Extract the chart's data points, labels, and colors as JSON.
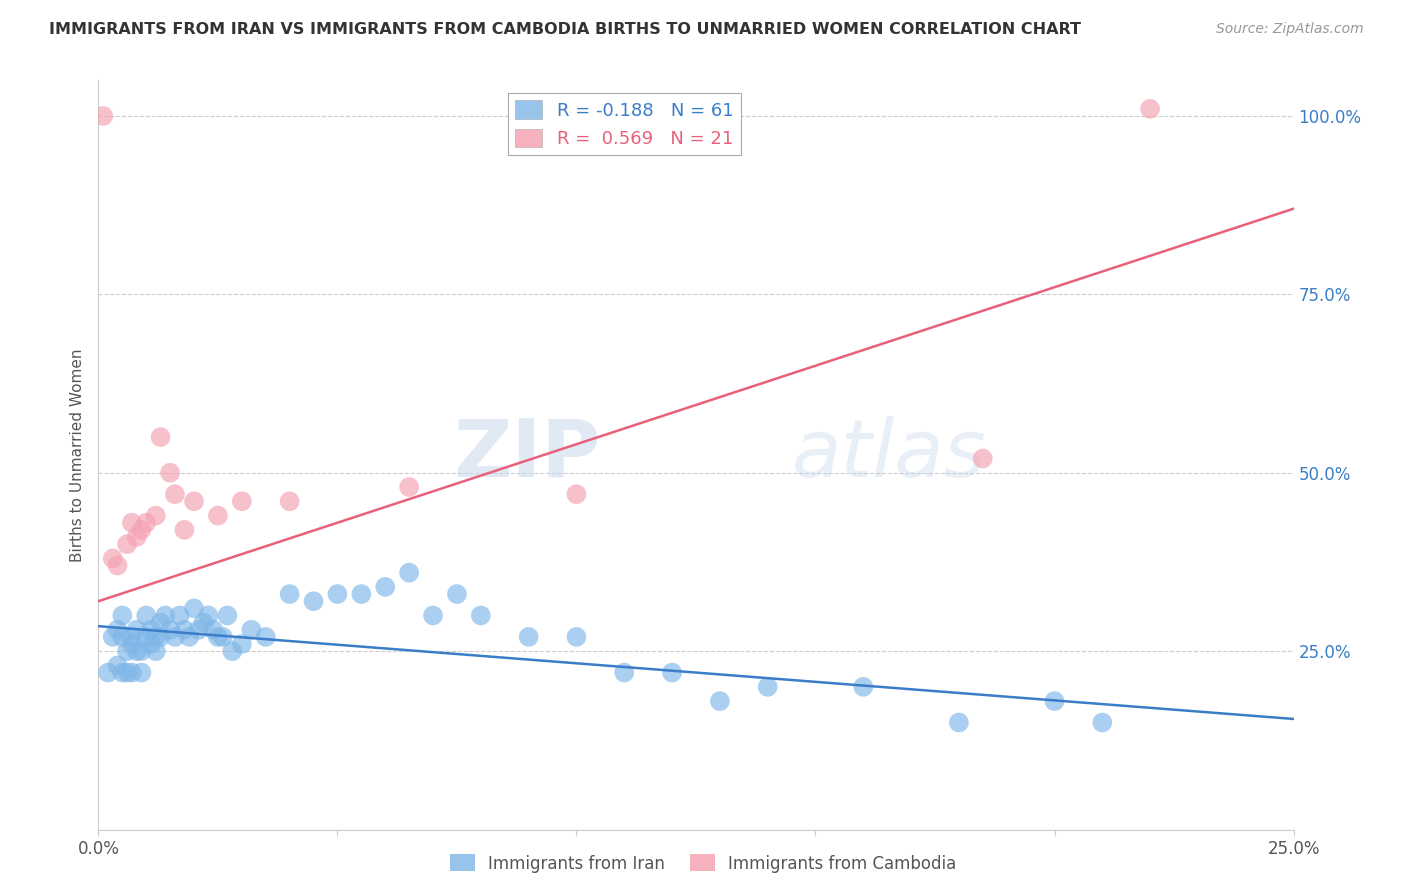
{
  "title": "IMMIGRANTS FROM IRAN VS IMMIGRANTS FROM CAMBODIA BIRTHS TO UNMARRIED WOMEN CORRELATION CHART",
  "source": "Source: ZipAtlas.com",
  "ylabel": "Births to Unmarried Women",
  "x_min": 0.0,
  "x_max": 0.25,
  "y_min": 0.0,
  "y_max": 1.05,
  "yticks": [
    0.0,
    0.25,
    0.5,
    0.75,
    1.0
  ],
  "ytick_labels": [
    "",
    "25.0%",
    "50.0%",
    "75.0%",
    "100.0%"
  ],
  "xticks": [
    0.0,
    0.05,
    0.1,
    0.15,
    0.2,
    0.25
  ],
  "xtick_labels": [
    "0.0%",
    "",
    "",
    "",
    "",
    "25.0%"
  ],
  "iran_color": "#7EB6E8",
  "cambodia_color": "#F4A0B0",
  "iran_line_color": "#3B7DC8",
  "cambodia_line_color": "#E8607A",
  "iran_R": -0.188,
  "iran_N": 61,
  "cambodia_R": 0.569,
  "cambodia_N": 21,
  "watermark_part1": "ZIP",
  "watermark_part2": "atlas",
  "background_color": "#FFFFFF",
  "grid_color": "#CCCCCC",
  "iran_line_x0": 0.0,
  "iran_line_y0": 0.285,
  "iran_line_x1": 0.25,
  "iran_line_y1": 0.155,
  "cambodia_line_x0": 0.0,
  "cambodia_line_y0": 0.32,
  "cambodia_line_x1": 0.25,
  "cambodia_line_y1": 0.87,
  "iran_scatter_x": [
    0.002,
    0.003,
    0.004,
    0.004,
    0.005,
    0.005,
    0.005,
    0.006,
    0.006,
    0.007,
    0.007,
    0.007,
    0.008,
    0.008,
    0.009,
    0.009,
    0.01,
    0.01,
    0.011,
    0.011,
    0.012,
    0.012,
    0.013,
    0.013,
    0.014,
    0.015,
    0.016,
    0.017,
    0.018,
    0.019,
    0.02,
    0.021,
    0.022,
    0.023,
    0.024,
    0.025,
    0.026,
    0.027,
    0.028,
    0.03,
    0.032,
    0.035,
    0.04,
    0.045,
    0.05,
    0.055,
    0.06,
    0.065,
    0.07,
    0.075,
    0.08,
    0.09,
    0.1,
    0.11,
    0.12,
    0.13,
    0.14,
    0.16,
    0.18,
    0.2,
    0.21
  ],
  "iran_scatter_y": [
    0.22,
    0.27,
    0.28,
    0.23,
    0.27,
    0.3,
    0.22,
    0.25,
    0.22,
    0.27,
    0.26,
    0.22,
    0.28,
    0.25,
    0.25,
    0.22,
    0.3,
    0.27,
    0.26,
    0.28,
    0.27,
    0.25,
    0.29,
    0.27,
    0.3,
    0.28,
    0.27,
    0.3,
    0.28,
    0.27,
    0.31,
    0.28,
    0.29,
    0.3,
    0.28,
    0.27,
    0.27,
    0.3,
    0.25,
    0.26,
    0.28,
    0.27,
    0.33,
    0.32,
    0.33,
    0.33,
    0.34,
    0.36,
    0.3,
    0.33,
    0.3,
    0.27,
    0.27,
    0.22,
    0.22,
    0.18,
    0.2,
    0.2,
    0.15,
    0.18,
    0.15
  ],
  "cambodia_scatter_x": [
    0.001,
    0.003,
    0.004,
    0.006,
    0.007,
    0.008,
    0.009,
    0.01,
    0.012,
    0.013,
    0.015,
    0.016,
    0.018,
    0.02,
    0.025,
    0.03,
    0.04,
    0.065,
    0.1,
    0.185,
    0.22
  ],
  "cambodia_scatter_y": [
    1.0,
    0.38,
    0.37,
    0.4,
    0.43,
    0.41,
    0.42,
    0.43,
    0.44,
    0.55,
    0.5,
    0.47,
    0.42,
    0.46,
    0.44,
    0.46,
    0.46,
    0.48,
    0.47,
    0.52,
    1.01
  ]
}
